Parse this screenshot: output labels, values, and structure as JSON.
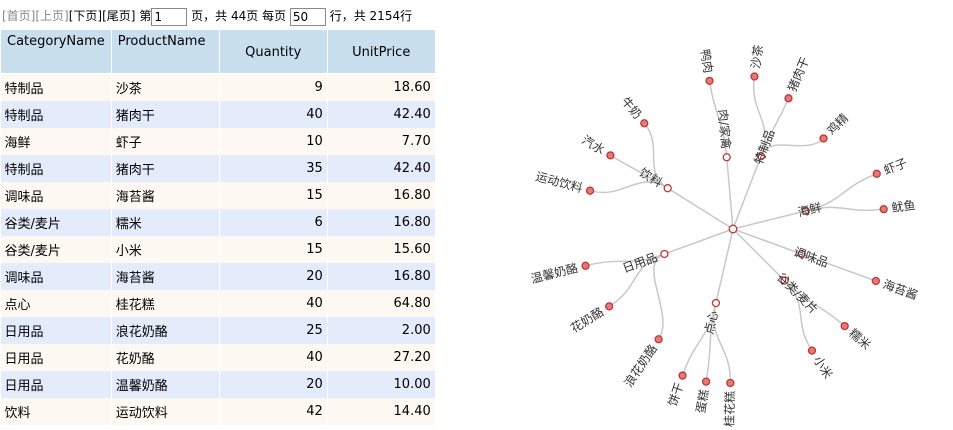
{
  "pager": {
    "first": "[首页]",
    "prev": "[上页]",
    "next": "[下页]",
    "last": "[尾页]",
    "page_prefix": "第",
    "page_value": "1",
    "page_suffix": "页，共 44页 每页",
    "page_size": "50",
    "rows_suffix": "行，共 2154行"
  },
  "table": {
    "columns": [
      "CategoryName",
      "ProductName",
      "Quantity",
      "UnitPrice"
    ],
    "rows": [
      [
        "特制品",
        "沙茶",
        "9",
        "18.60"
      ],
      [
        "特制品",
        "猪肉干",
        "40",
        "42.40"
      ],
      [
        "海鲜",
        "虾子",
        "10",
        "7.70"
      ],
      [
        "特制品",
        "猪肉干",
        "35",
        "42.40"
      ],
      [
        "调味品",
        "海苔酱",
        "15",
        "16.80"
      ],
      [
        "谷类/麦片",
        "糯米",
        "6",
        "16.80"
      ],
      [
        "谷类/麦片",
        "小米",
        "15",
        "15.60"
      ],
      [
        "调味品",
        "海苔酱",
        "20",
        "16.80"
      ],
      [
        "点心",
        "桂花糕",
        "40",
        "64.80"
      ],
      [
        "日用品",
        "浪花奶酪",
        "25",
        "2.00"
      ],
      [
        "日用品",
        "花奶酪",
        "40",
        "27.20"
      ],
      [
        "日用品",
        "温馨奶酪",
        "20",
        "10.00"
      ],
      [
        "饮料",
        "运动饮料",
        "42",
        "14.40"
      ]
    ]
  },
  "tree": {
    "colors": {
      "link": "#c8c8c8",
      "node_stroke": "#c23531",
      "leaf_fill": "#e07b7b",
      "inner_fill": "#ffffff"
    },
    "root": "root",
    "categories": [
      {
        "name": "肉/家禽",
        "children": [
          "鸭肉"
        ]
      },
      {
        "name": "特制品",
        "children": [
          "沙茶",
          "猪肉干",
          "鸡精"
        ]
      },
      {
        "name": "海鲜",
        "children": [
          "虾子",
          "鱿鱼"
        ]
      },
      {
        "name": "调味品",
        "children": [
          "海苔酱"
        ]
      },
      {
        "name": "谷类/麦片",
        "children": [
          "糯米",
          "小米"
        ]
      },
      {
        "name": "点心",
        "children": [
          "桂花糕",
          "蛋糕",
          "饼干"
        ]
      },
      {
        "name": "日用品",
        "children": [
          "浪花奶酪",
          "花奶酪",
          "温馨奶酪"
        ]
      },
      {
        "name": "饮料",
        "children": [
          "运动饮料",
          "汽水",
          "牛奶"
        ]
      }
    ]
  }
}
